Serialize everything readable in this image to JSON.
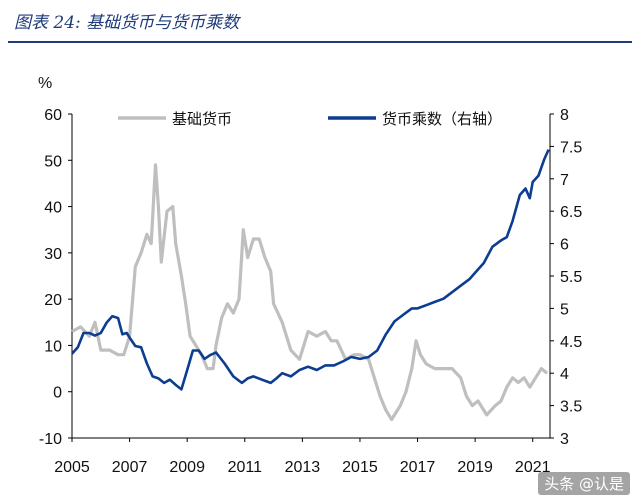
{
  "header": {
    "figure_title": "图表 24:  基础货币与货币乘数"
  },
  "watermark": "头条 @认是",
  "chart_data": {
    "type": "line",
    "title": "图表 24: 基础货币与货币乘数",
    "left_axis": {
      "label": "%",
      "min": -10,
      "max": 60,
      "ticks": [
        -10,
        0,
        10,
        20,
        30,
        40,
        50,
        60
      ]
    },
    "right_axis": {
      "label": "",
      "min": 3,
      "max": 8,
      "ticks": [
        "3",
        "3.5",
        "4",
        "4.5",
        "5",
        "5.5",
        "6",
        "6.5",
        "7",
        "7.5",
        "8"
      ]
    },
    "x_axis": {
      "min": 2005,
      "max": 2021.6,
      "ticks": [
        "2005",
        "2007",
        "2009",
        "2011",
        "2013",
        "2015",
        "2017",
        "2019",
        "2021"
      ]
    },
    "legend_position": "top",
    "series": [
      {
        "name": "基础货币",
        "axis": "left",
        "color": "#bfbfbf",
        "points": [
          [
            2005.0,
            13
          ],
          [
            2005.3,
            14
          ],
          [
            2005.6,
            12
          ],
          [
            2005.8,
            15
          ],
          [
            2006.0,
            9
          ],
          [
            2006.3,
            9
          ],
          [
            2006.6,
            8
          ],
          [
            2006.8,
            8
          ],
          [
            2007.0,
            12
          ],
          [
            2007.2,
            27
          ],
          [
            2007.4,
            30
          ],
          [
            2007.6,
            34
          ],
          [
            2007.75,
            32
          ],
          [
            2007.9,
            49
          ],
          [
            2008.0,
            40
          ],
          [
            2008.1,
            28
          ],
          [
            2008.3,
            39
          ],
          [
            2008.5,
            40
          ],
          [
            2008.6,
            32
          ],
          [
            2008.8,
            25
          ],
          [
            2008.95,
            19
          ],
          [
            2009.1,
            12
          ],
          [
            2009.3,
            10
          ],
          [
            2009.5,
            8
          ],
          [
            2009.7,
            5
          ],
          [
            2009.9,
            5
          ],
          [
            2010.0,
            10
          ],
          [
            2010.2,
            16
          ],
          [
            2010.4,
            19
          ],
          [
            2010.6,
            17
          ],
          [
            2010.8,
            20
          ],
          [
            2010.95,
            35
          ],
          [
            2011.1,
            29
          ],
          [
            2011.3,
            33
          ],
          [
            2011.5,
            33
          ],
          [
            2011.7,
            29
          ],
          [
            2011.9,
            26
          ],
          [
            2012.0,
            19
          ],
          [
            2012.3,
            15
          ],
          [
            2012.6,
            9
          ],
          [
            2012.9,
            7
          ],
          [
            2013.2,
            13
          ],
          [
            2013.5,
            12
          ],
          [
            2013.8,
            13
          ],
          [
            2014.0,
            11
          ],
          [
            2014.2,
            11
          ],
          [
            2014.5,
            7
          ],
          [
            2014.8,
            8
          ],
          [
            2015.0,
            8
          ],
          [
            2015.3,
            7
          ],
          [
            2015.5,
            3
          ],
          [
            2015.7,
            -1
          ],
          [
            2015.9,
            -4
          ],
          [
            2016.1,
            -6
          ],
          [
            2016.4,
            -3
          ],
          [
            2016.6,
            0
          ],
          [
            2016.8,
            5
          ],
          [
            2016.95,
            11
          ],
          [
            2017.1,
            8
          ],
          [
            2017.3,
            6
          ],
          [
            2017.6,
            5
          ],
          [
            2017.9,
            5
          ],
          [
            2018.2,
            5
          ],
          [
            2018.5,
            3
          ],
          [
            2018.7,
            -1
          ],
          [
            2018.9,
            -3
          ],
          [
            2019.1,
            -2
          ],
          [
            2019.4,
            -5
          ],
          [
            2019.7,
            -3
          ],
          [
            2019.9,
            -2
          ],
          [
            2020.1,
            1
          ],
          [
            2020.3,
            3
          ],
          [
            2020.5,
            2
          ],
          [
            2020.7,
            3
          ],
          [
            2020.9,
            1
          ],
          [
            2021.1,
            3
          ],
          [
            2021.3,
            5
          ],
          [
            2021.5,
            4
          ]
        ]
      },
      {
        "name": "货币乘数（右轴）",
        "axis": "right",
        "color": "#0c3d91",
        "points": [
          [
            2005.0,
            4.3
          ],
          [
            2005.2,
            4.4
          ],
          [
            2005.4,
            4.62
          ],
          [
            2005.6,
            4.62
          ],
          [
            2005.8,
            4.58
          ],
          [
            2006.0,
            4.62
          ],
          [
            2006.2,
            4.78
          ],
          [
            2006.4,
            4.88
          ],
          [
            2006.6,
            4.85
          ],
          [
            2006.75,
            4.6
          ],
          [
            2006.9,
            4.62
          ],
          [
            2007.0,
            4.55
          ],
          [
            2007.2,
            4.42
          ],
          [
            2007.4,
            4.4
          ],
          [
            2007.6,
            4.15
          ],
          [
            2007.8,
            3.95
          ],
          [
            2008.0,
            3.92
          ],
          [
            2008.2,
            3.85
          ],
          [
            2008.4,
            3.9
          ],
          [
            2008.6,
            3.82
          ],
          [
            2008.8,
            3.75
          ],
          [
            2009.0,
            4.05
          ],
          [
            2009.2,
            4.35
          ],
          [
            2009.4,
            4.35
          ],
          [
            2009.6,
            4.22
          ],
          [
            2009.8,
            4.28
          ],
          [
            2010.0,
            4.32
          ],
          [
            2010.3,
            4.15
          ],
          [
            2010.6,
            3.95
          ],
          [
            2010.9,
            3.85
          ],
          [
            2011.1,
            3.92
          ],
          [
            2011.3,
            3.95
          ],
          [
            2011.6,
            3.9
          ],
          [
            2011.9,
            3.85
          ],
          [
            2012.1,
            3.92
          ],
          [
            2012.3,
            4.0
          ],
          [
            2012.6,
            3.95
          ],
          [
            2012.9,
            4.05
          ],
          [
            2013.2,
            4.1
          ],
          [
            2013.5,
            4.05
          ],
          [
            2013.8,
            4.12
          ],
          [
            2014.1,
            4.12
          ],
          [
            2014.4,
            4.18
          ],
          [
            2014.7,
            4.25
          ],
          [
            2015.0,
            4.22
          ],
          [
            2015.3,
            4.25
          ],
          [
            2015.6,
            4.35
          ],
          [
            2015.9,
            4.6
          ],
          [
            2016.2,
            4.8
          ],
          [
            2016.5,
            4.9
          ],
          [
            2016.8,
            5.0
          ],
          [
            2017.0,
            5.0
          ],
          [
            2017.3,
            5.05
          ],
          [
            2017.6,
            5.1
          ],
          [
            2017.9,
            5.15
          ],
          [
            2018.2,
            5.25
          ],
          [
            2018.5,
            5.35
          ],
          [
            2018.8,
            5.45
          ],
          [
            2019.0,
            5.55
          ],
          [
            2019.3,
            5.7
          ],
          [
            2019.6,
            5.95
          ],
          [
            2019.9,
            6.05
          ],
          [
            2020.1,
            6.1
          ],
          [
            2020.3,
            6.35
          ],
          [
            2020.55,
            6.75
          ],
          [
            2020.75,
            6.85
          ],
          [
            2020.9,
            6.7
          ],
          [
            2021.0,
            6.95
          ],
          [
            2021.2,
            7.05
          ],
          [
            2021.4,
            7.3
          ],
          [
            2021.55,
            7.45
          ]
        ]
      }
    ]
  }
}
